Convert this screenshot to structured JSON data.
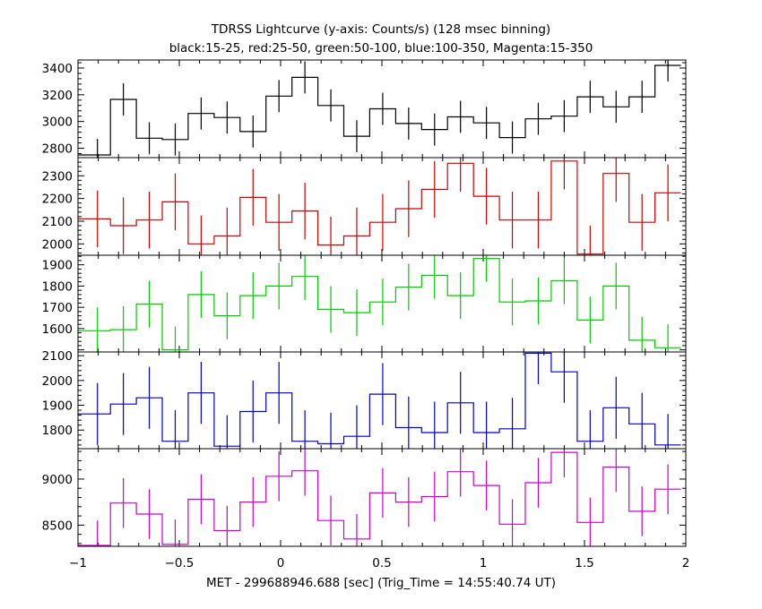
{
  "title": "TDRSS Lightcurve (y-axis: Counts/s) (128 msec binning)",
  "subtitle": "black:15-25, red:25-50, green:50-100, blue:100-350, Magenta:15-350",
  "xlabel": "MET - 299688946.688 [sec] (Trig_Time = 14:55:40.74 UT)",
  "chart_data": {
    "type": "line",
    "style": "step with error bars",
    "x_range": [
      -1,
      2
    ],
    "x_ticks": [
      -1,
      -0.5,
      0,
      0.5,
      1,
      1.5,
      2
    ],
    "x_tick_labels": [
      "−1",
      "−0.5",
      "0",
      "0.5",
      "1",
      "1.5",
      "2"
    ],
    "bin_width": 0.128,
    "bin_starts": [
      -0.968,
      -0.84,
      -0.712,
      -0.584,
      -0.456,
      -0.328,
      -0.2,
      -0.072,
      0.056,
      0.184,
      0.312,
      0.44,
      0.568,
      0.696,
      0.824,
      0.952,
      1.08,
      1.208,
      1.336,
      1.464,
      1.592,
      1.72,
      1.848
    ],
    "panels": [
      {
        "band": "15-25",
        "color": "#000000",
        "ylim": [
          2730,
          3460
        ],
        "yticks": [
          2800,
          3000,
          3200,
          3400
        ],
        "values": [
          2750,
          3165,
          2875,
          2865,
          3060,
          3030,
          2925,
          3190,
          3330,
          3120,
          2890,
          3095,
          2985,
          2940,
          3035,
          2990,
          2880,
          3020,
          3040,
          3185,
          3110,
          3185,
          3420
        ],
        "errors": [
          120,
          120,
          120,
          120,
          120,
          120,
          120,
          120,
          120,
          120,
          120,
          120,
          120,
          120,
          120,
          120,
          120,
          120,
          120,
          120,
          120,
          120,
          120
        ]
      },
      {
        "band": "25-50",
        "color": "#d00000",
        "ylim": [
          1950,
          2380
        ],
        "yticks": [
          2000,
          2100,
          2200,
          2300
        ],
        "values": [
          2110,
          2080,
          2105,
          2185,
          2000,
          2035,
          2205,
          2095,
          2145,
          1995,
          2035,
          2095,
          2155,
          2240,
          2355,
          2210,
          2105,
          2105,
          2365,
          1955,
          2310,
          2095,
          2225
        ],
        "errors": [
          125,
          125,
          125,
          125,
          125,
          125,
          125,
          125,
          125,
          125,
          125,
          125,
          125,
          125,
          125,
          125,
          125,
          125,
          125,
          125,
          125,
          125,
          125
        ]
      },
      {
        "band": "50-100",
        "color": "#00cc00",
        "ylim": [
          1490,
          1945
        ],
        "yticks": [
          1600,
          1700,
          1800,
          1900
        ],
        "values": [
          1590,
          1595,
          1715,
          1500,
          1760,
          1660,
          1755,
          1800,
          1845,
          1690,
          1675,
          1725,
          1795,
          1850,
          1755,
          1930,
          1725,
          1730,
          1825,
          1640,
          1800,
          1545,
          1510
        ],
        "errors": [
          110,
          110,
          110,
          110,
          110,
          110,
          110,
          110,
          110,
          110,
          110,
          110,
          110,
          110,
          110,
          110,
          110,
          110,
          110,
          110,
          110,
          110,
          110
        ]
      },
      {
        "band": "100-350",
        "color": "#0000cc",
        "ylim": [
          1725,
          2115
        ],
        "yticks": [
          1800,
          1900,
          2000,
          2100
        ],
        "values": [
          1865,
          1905,
          1930,
          1755,
          1950,
          1735,
          1875,
          1950,
          1755,
          1745,
          1775,
          1945,
          1810,
          1790,
          1910,
          1790,
          1805,
          2110,
          2035,
          1755,
          1890,
          1825,
          1740
        ],
        "errors": [
          125,
          125,
          125,
          125,
          125,
          125,
          125,
          125,
          125,
          125,
          125,
          125,
          125,
          125,
          125,
          125,
          125,
          125,
          125,
          125,
          125,
          125,
          125
        ]
      },
      {
        "band": "15-350",
        "color": "#cc00cc",
        "ylim": [
          8270,
          9330
        ],
        "yticks": [
          8500,
          9000
        ],
        "values": [
          8280,
          8740,
          8620,
          8290,
          8780,
          8440,
          8750,
          9030,
          9090,
          8550,
          8350,
          8850,
          8750,
          8810,
          9080,
          8930,
          8510,
          8960,
          9290,
          8530,
          9130,
          8650,
          8890
        ],
        "errors": [
          270,
          270,
          270,
          270,
          270,
          270,
          270,
          270,
          270,
          270,
          270,
          270,
          270,
          270,
          270,
          270,
          270,
          270,
          270,
          270,
          270,
          270,
          270
        ]
      }
    ]
  }
}
